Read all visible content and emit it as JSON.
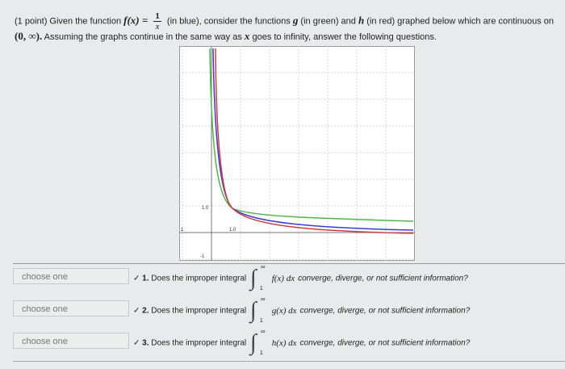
{
  "problem": {
    "lead": "(1 point) Given the function",
    "function": "f(x) =",
    "numerator": "1",
    "denominator": "x",
    "line1_rest": "(in blue), consider the functions",
    "g": "g",
    "g_note": "(in green) and",
    "h": "h",
    "h_note": "(in red) graphed below which are continuous on",
    "interval": "(0, ∞).",
    "line2_a": "Assuming the graphs continue in the same way as",
    "x": "x",
    "line2_b": "goes to infinity, answer the following questions."
  },
  "graph": {
    "labels": [
      "1.0",
      "1",
      "1.0",
      "-1"
    ]
  },
  "questions": [
    {
      "select": "choose one",
      "number": "1.",
      "text": "Does the improper integral",
      "upper": "∞",
      "lower": "1",
      "integrand": "f(x) dx",
      "options": "converge, diverge, or not sufficient information?"
    },
    {
      "select": "choose one",
      "number": "2.",
      "text": "Does the improper integral",
      "upper": "∞",
      "lower": "1",
      "integrand": "g(x) dx",
      "options": "converge, diverge, or not sufficient information?"
    },
    {
      "select": "choose one",
      "number": "3.",
      "text": "Does the improper integral",
      "upper": "∞",
      "lower": "1",
      "integrand": "h(x) dx",
      "options": "converge, diverge, or not sufficient information?"
    }
  ]
}
